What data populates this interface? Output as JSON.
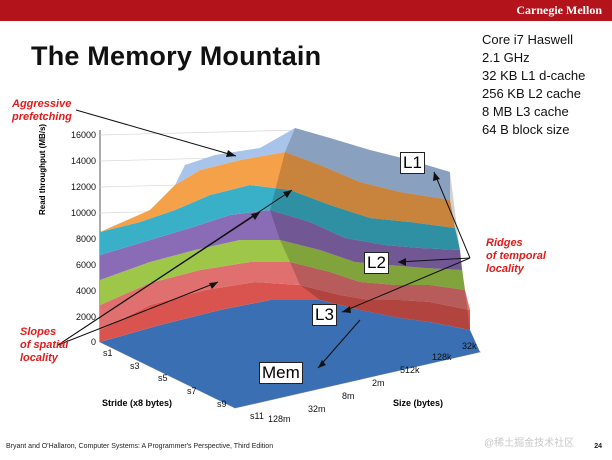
{
  "header": {
    "brand": "Carnegie Mellon",
    "bar_color": "#b3141b"
  },
  "slide": {
    "title": "The Memory Mountain",
    "specs": [
      "Core i7 Haswell",
      "2.1 GHz",
      "32 KB L1 d-cache",
      "256 KB L2 cache",
      "8 MB L3 cache",
      "64 B block size"
    ],
    "annotations": {
      "aggressive_prefetching": [
        "Aggressive",
        "prefetching"
      ],
      "slopes": [
        "Slopes",
        "of spatial",
        "locality"
      ],
      "ridges": [
        "Ridges",
        "of temporal",
        "locality"
      ]
    },
    "cache_labels": {
      "l1": "L1",
      "l2": "L2",
      "l3": "L3",
      "mem": "Mem"
    },
    "footer": "Bryant and O'Hallaron, Computer Systems: A Programmer's Perspective, Third Edition",
    "page_number": "24",
    "watermark": "@稀土掘金技术社区"
  },
  "chart_data": {
    "type": "surface",
    "ylabel": "Read throughput (MB/s)",
    "xlabel": "Stride (x8 bytes)",
    "zlabel": "Size (bytes)",
    "yticks": [
      "0",
      "2000",
      "4000",
      "6000",
      "8000",
      "10000",
      "12000",
      "14000",
      "16000"
    ],
    "stride_ticks": [
      "s1",
      "s3",
      "s5",
      "s7",
      "s9",
      "s11"
    ],
    "size_ticks": [
      "128m",
      "32m",
      "8m",
      "2m",
      "512k",
      "128k",
      "32k"
    ],
    "band_colors": [
      "#3a6fb3",
      "#d9544f",
      "#d98a8a",
      "#9ec74a",
      "#8a6bb5",
      "#3ab0c8",
      "#f5a14a",
      "#a9c4ea"
    ],
    "floor_color": "#c9c9c9",
    "annotation_color": "#e01b1b"
  }
}
